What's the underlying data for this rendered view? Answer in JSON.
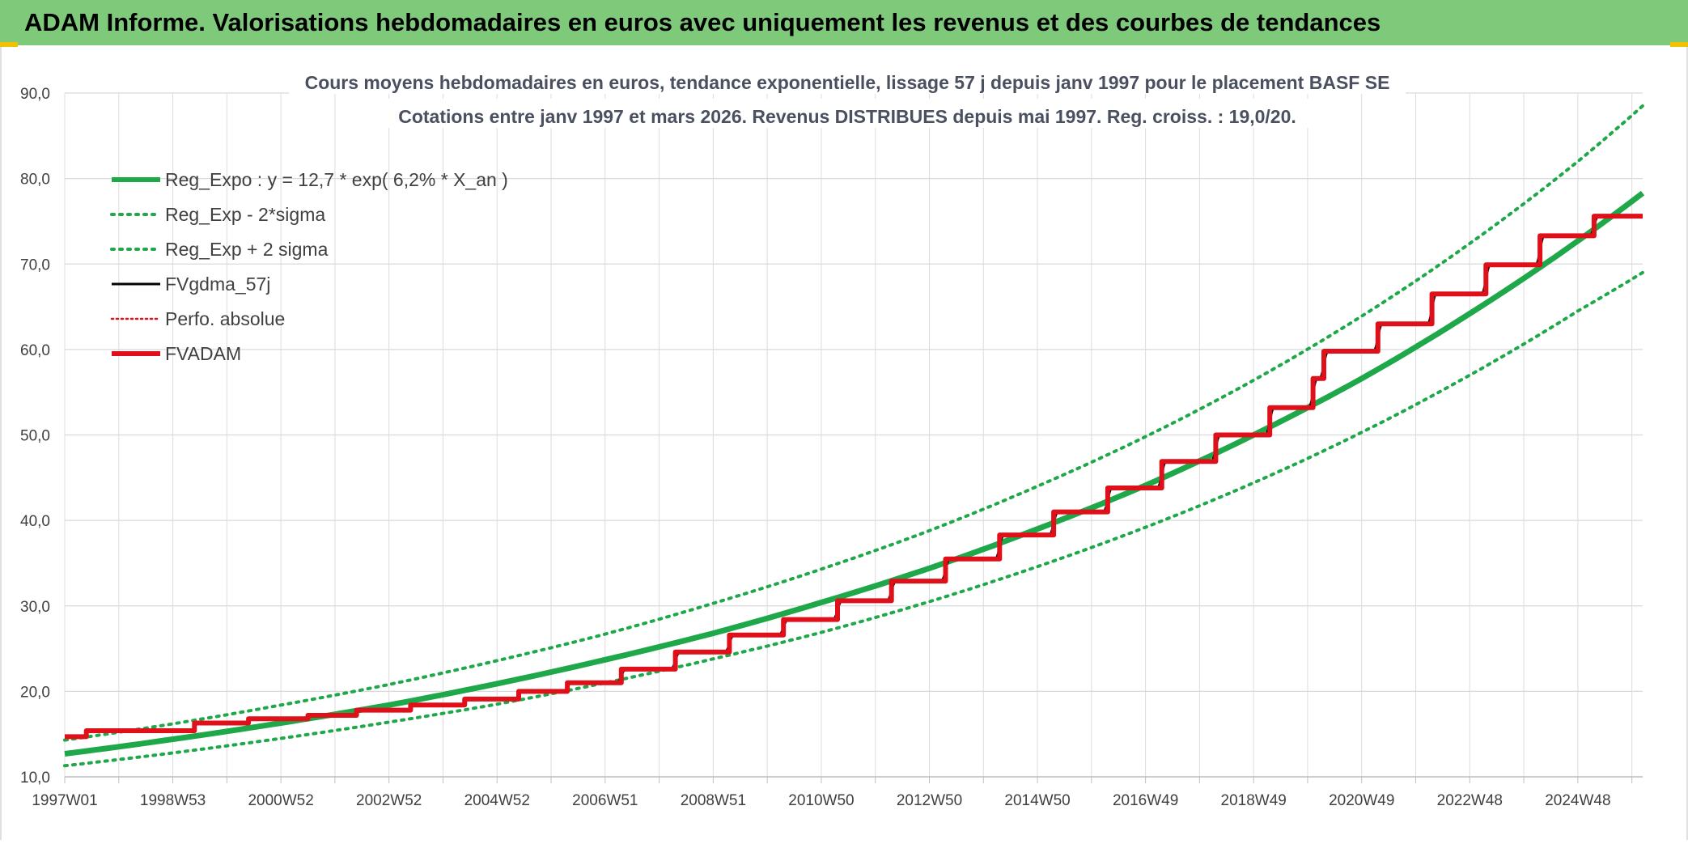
{
  "banner": {
    "title": "ADAM Informe. Valorisations hebdomadaires en euros avec uniquement les revenus et des courbes de tendances",
    "color": "#7ec97a"
  },
  "chart_data": {
    "type": "line",
    "title": "Cours moyens hebdomadaires en euros, tendance exponentielle, lissage 57 j depuis janv 1997 pour le placement BASF SE",
    "subtitle": "Cotations entre janv 1997 et mars 2026. Revenus DISTRIBUES depuis mai 1997. Reg. croiss. : 19,0/20.",
    "xlabel": "",
    "ylabel": "",
    "ylim": [
      10,
      90
    ],
    "yticks": [
      "10,0",
      "20,0",
      "30,0",
      "40,0",
      "50,0",
      "60,0",
      "70,0",
      "80,0",
      "90,0"
    ],
    "xticks": [
      "1997W01",
      "1998W53",
      "2000W52",
      "2002W52",
      "2004W52",
      "2006W51",
      "2008W51",
      "2010W50",
      "2012W50",
      "2014W50",
      "2016W49",
      "2018W49",
      "2020W49",
      "2022W48",
      "2024W48"
    ],
    "xlim": [
      1997.0,
      2026.2
    ],
    "grid": true,
    "legend_position": "top-left",
    "series": [
      {
        "name": "Reg_Expo : y = 12,7 * exp( 6,2% *  X_an )",
        "color": "#1fa84a",
        "style": "solid-thick",
        "x": [
          1997,
          1999,
          2001,
          2003,
          2005,
          2007,
          2009,
          2011,
          2013,
          2015,
          2017,
          2019,
          2021,
          2023,
          2025,
          2026.2
        ],
        "y": [
          12.7,
          14.4,
          16.3,
          18.4,
          20.9,
          23.7,
          26.8,
          30.4,
          34.4,
          39.0,
          44.1,
          50.0,
          56.6,
          64.2,
          72.7,
          78.3
        ]
      },
      {
        "name": "Reg_Exp - 2*sigma",
        "color": "#1fa84a",
        "style": "dotted",
        "x": [
          1997,
          1999,
          2001,
          2003,
          2005,
          2007,
          2009,
          2011,
          2013,
          2015,
          2017,
          2019,
          2021,
          2023,
          2025,
          2026.2
        ],
        "y": [
          11.3,
          12.8,
          14.5,
          16.4,
          18.5,
          21.0,
          23.8,
          26.9,
          30.5,
          34.6,
          39.2,
          44.4,
          50.3,
          57.0,
          64.5,
          69.0
        ]
      },
      {
        "name": "Reg_Exp + 2 sigma",
        "color": "#1fa84a",
        "style": "dotted",
        "x": [
          1997,
          1999,
          2001,
          2003,
          2005,
          2007,
          2009,
          2011,
          2013,
          2015,
          2017,
          2019,
          2021,
          2023,
          2025,
          2026.2
        ],
        "y": [
          14.3,
          16.2,
          18.4,
          20.8,
          23.6,
          26.7,
          30.3,
          34.3,
          38.8,
          44.0,
          49.8,
          56.4,
          63.9,
          72.4,
          82.0,
          88.5
        ]
      },
      {
        "name": "FVgdma_57j",
        "color": "#000000",
        "style": "step-smooth",
        "start_x": 1997.0,
        "start_y": 14.7,
        "end_x": 2026.2,
        "steps_x": [
          1997.4,
          1999.4,
          2000.4,
          2001.5,
          2002.4,
          2003.4,
          2004.4,
          2005.4,
          2006.3,
          2007.3,
          2008.3,
          2009.3,
          2010.3,
          2011.3,
          2012.3,
          2013.3,
          2014.3,
          2015.3,
          2016.3,
          2017.3,
          2018.3,
          2019.3,
          2020.1,
          2020.3,
          2021.3,
          2022.3,
          2023.3,
          2024.3,
          2025.3
        ],
        "steps_y": [
          15.4,
          16.3,
          16.8,
          17.2,
          17.8,
          18.4,
          19.1,
          20.0,
          21.0,
          22.6,
          24.6,
          26.6,
          28.4,
          30.6,
          32.9,
          35.5,
          38.3,
          41.0,
          43.8,
          46.9,
          50.0,
          53.2,
          56.6,
          59.8,
          63.0,
          66.5,
          69.9,
          73.3,
          75.6
        ]
      },
      {
        "name": "Perfo. absolue",
        "color": "#e0101a",
        "style": "dotted-thin",
        "x": [],
        "y": []
      },
      {
        "name": "FVADAM",
        "color": "#e0101a",
        "style": "step-thick",
        "start_x": 1997.0,
        "start_y": 14.7,
        "end_x": 2026.2,
        "steps_x": [
          1997.4,
          1999.4,
          2000.4,
          2001.5,
          2002.4,
          2003.4,
          2004.4,
          2005.4,
          2006.3,
          2007.3,
          2008.3,
          2009.3,
          2010.3,
          2011.3,
          2012.3,
          2013.3,
          2014.3,
          2015.3,
          2016.3,
          2017.3,
          2018.3,
          2019.3,
          2020.1,
          2020.3,
          2021.3,
          2022.3,
          2023.3,
          2024.3,
          2025.3
        ],
        "steps_y": [
          15.4,
          16.3,
          16.8,
          17.2,
          17.8,
          18.4,
          19.1,
          20.0,
          21.0,
          22.6,
          24.6,
          26.6,
          28.4,
          30.6,
          32.9,
          35.5,
          38.3,
          41.0,
          43.8,
          46.9,
          50.0,
          53.2,
          56.6,
          59.8,
          63.0,
          66.5,
          69.9,
          73.3,
          75.6
        ]
      }
    ]
  }
}
